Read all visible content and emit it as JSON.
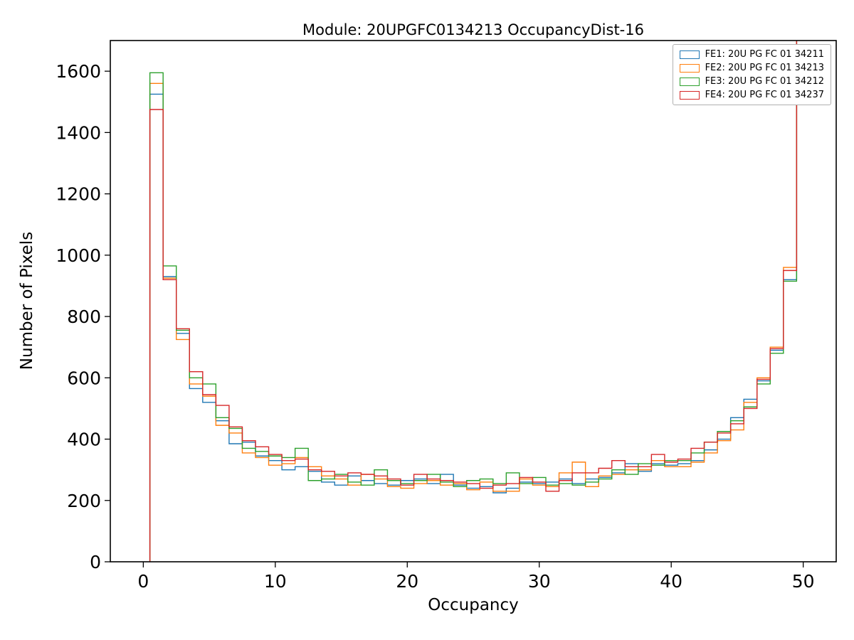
{
  "chart_data": {
    "type": "bar",
    "subtype": "step-histogram",
    "title": "Module: 20UPGFC0134213 OccupancyDist-16",
    "xlabel": "Occupancy",
    "ylabel": "Number of Pixels",
    "xlim": [
      -2.5,
      52.5
    ],
    "ylim": [
      0,
      1700
    ],
    "x_ticks": [
      0,
      10,
      20,
      30,
      40,
      50
    ],
    "y_ticks": [
      0,
      200,
      400,
      600,
      800,
      1000,
      1200,
      1400,
      1600
    ],
    "grid": false,
    "legend_position": "upper right",
    "bin_width": 1,
    "bin_centers": [
      1,
      2,
      3,
      4,
      5,
      6,
      7,
      8,
      9,
      10,
      11,
      12,
      13,
      14,
      15,
      16,
      17,
      18,
      19,
      20,
      21,
      22,
      23,
      24,
      25,
      26,
      27,
      28,
      29,
      30,
      31,
      32,
      33,
      34,
      35,
      36,
      37,
      38,
      39,
      40,
      41,
      42,
      43,
      44,
      45,
      46,
      47,
      48,
      49,
      50
    ],
    "series": [
      {
        "name": "FE1: 20U PG FC 01 34211",
        "color": "#1f77b4",
        "values": [
          1525,
          930,
          745,
          565,
          520,
          460,
          385,
          390,
          345,
          330,
          300,
          310,
          295,
          260,
          250,
          280,
          265,
          255,
          250,
          265,
          270,
          255,
          285,
          250,
          240,
          245,
          225,
          240,
          260,
          255,
          260,
          270,
          255,
          270,
          275,
          290,
          320,
          295,
          320,
          315,
          320,
          330,
          365,
          400,
          470,
          530,
          590,
          690,
          920,
          1800
        ]
      },
      {
        "name": "FE2: 20U PG FC 01 34213",
        "color": "#ff7f0e",
        "values": [
          1560,
          925,
          725,
          580,
          540,
          445,
          420,
          355,
          340,
          315,
          320,
          340,
          310,
          280,
          270,
          250,
          285,
          270,
          245,
          240,
          255,
          265,
          250,
          255,
          235,
          260,
          230,
          230,
          270,
          250,
          245,
          290,
          325,
          245,
          280,
          285,
          300,
          300,
          330,
          310,
          310,
          325,
          355,
          395,
          430,
          520,
          600,
          700,
          960,
          1800
        ]
      },
      {
        "name": "FE3: 20U PG FC 01 34212",
        "color": "#2ca02c",
        "values": [
          1595,
          965,
          755,
          600,
          580,
          470,
          435,
          370,
          360,
          345,
          340,
          370,
          265,
          270,
          285,
          260,
          250,
          300,
          265,
          255,
          265,
          285,
          260,
          245,
          265,
          270,
          255,
          290,
          255,
          275,
          250,
          255,
          250,
          260,
          270,
          300,
          285,
          320,
          315,
          330,
          330,
          355,
          390,
          425,
          460,
          505,
          580,
          680,
          915,
          1800
        ]
      },
      {
        "name": "FE4: 20U PG FC 01 34237",
        "color": "#d62728",
        "values": [
          1475,
          920,
          760,
          620,
          545,
          510,
          440,
          395,
          375,
          350,
          330,
          335,
          300,
          295,
          280,
          290,
          285,
          280,
          270,
          250,
          285,
          270,
          265,
          260,
          255,
          240,
          250,
          255,
          275,
          260,
          230,
          265,
          290,
          290,
          305,
          330,
          310,
          310,
          350,
          325,
          335,
          370,
          390,
          420,
          450,
          500,
          595,
          695,
          950,
          1800
        ]
      }
    ]
  }
}
